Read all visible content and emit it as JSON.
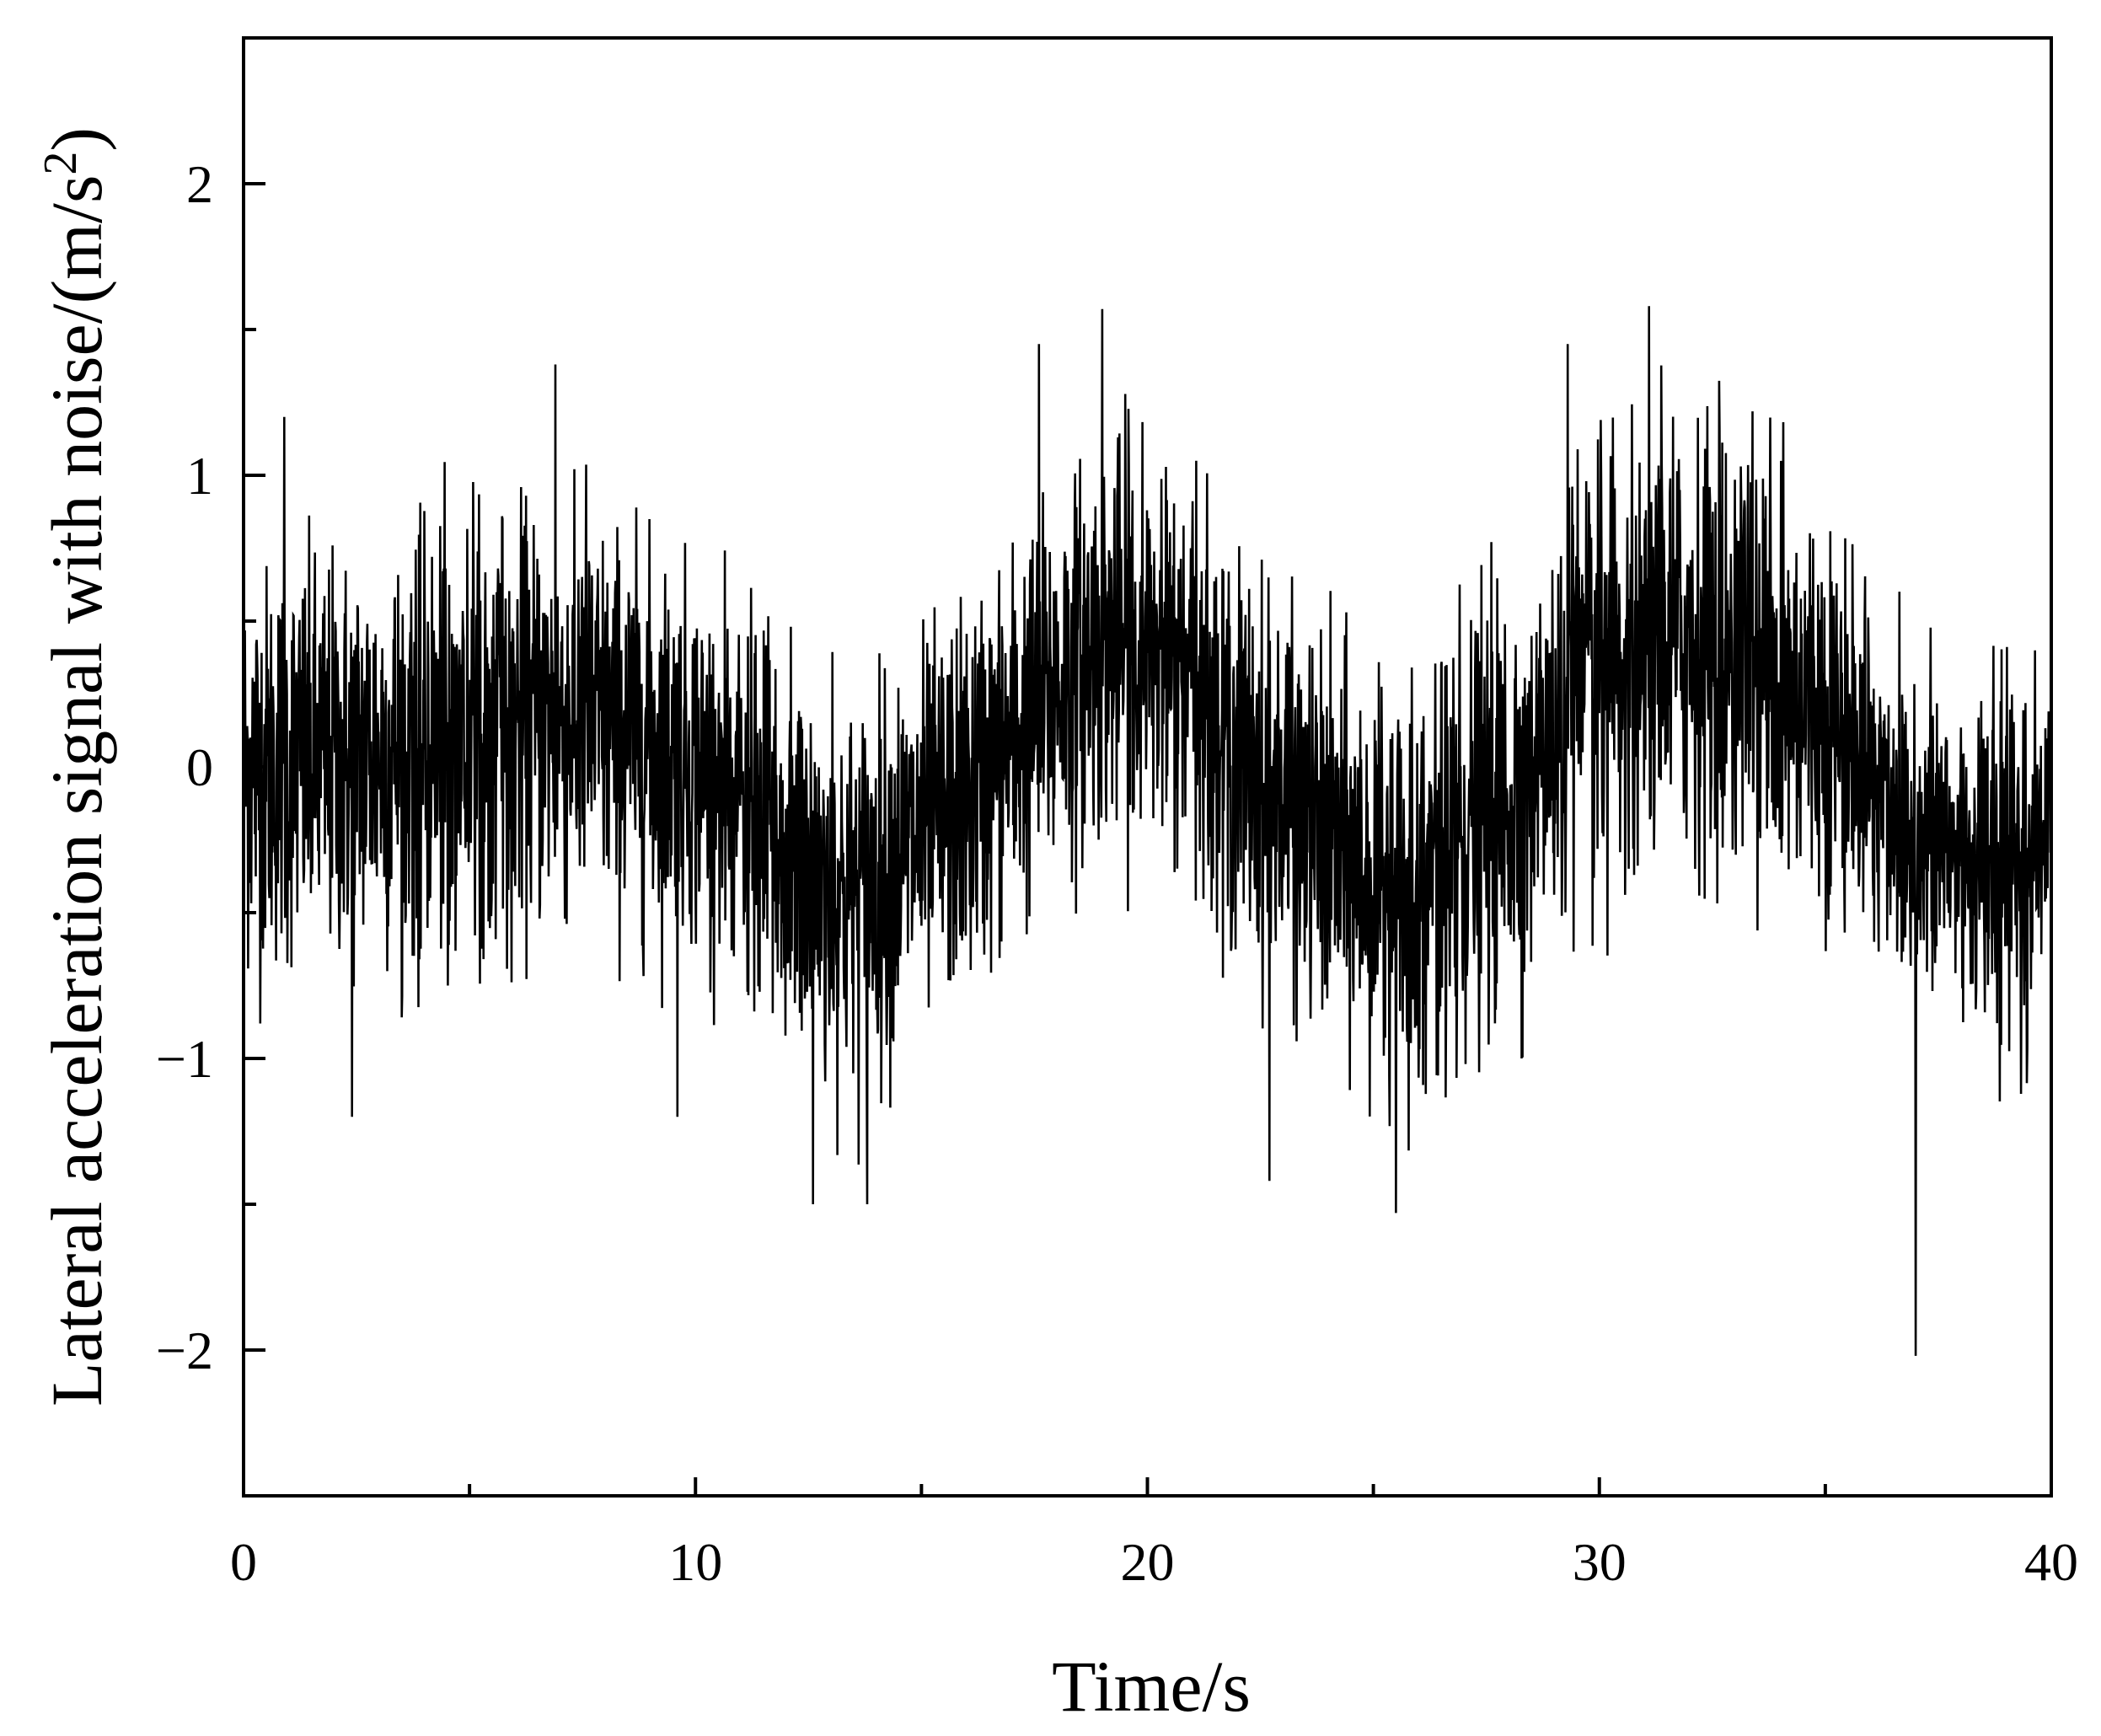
{
  "chart_data": {
    "type": "line",
    "title": "",
    "xlabel": "Time/s",
    "ylabel_prefix": "Lateral acceleration signal with noise/(m/s",
    "ylabel_sup": "2",
    "ylabel_suffix": ")",
    "xlim": [
      0,
      40
    ],
    "ylim": [
      -2.5,
      2.5
    ],
    "x_ticks": [
      0,
      10,
      20,
      30,
      40
    ],
    "x_tick_labels": [
      "0",
      "10",
      "20",
      "30",
      "40"
    ],
    "x_minor_ticks": [
      5,
      15,
      25,
      35
    ],
    "y_ticks": [
      -2,
      -1,
      0,
      1,
      2
    ],
    "y_tick_labels": [
      "−2",
      "−1",
      "0",
      "1",
      "2"
    ],
    "y_minor_ticks": [
      -1.5,
      -0.5,
      0.5,
      1.5
    ],
    "grid": false,
    "legend": "none",
    "line_color": "#000000",
    "series": [
      {
        "sample_step_s": 0.01,
        "baseline_envelope": {
          "t": [
            0,
            2,
            4,
            6,
            7.5,
            10,
            12.5,
            13.5,
            16,
            19,
            20.5,
            23,
            25.5,
            28,
            31,
            33,
            35,
            37,
            39,
            40
          ],
          "center": [
            0.0,
            0.02,
            0.08,
            0.15,
            0.18,
            0.02,
            -0.38,
            -0.45,
            -0.1,
            0.45,
            0.35,
            -0.15,
            -0.45,
            -0.1,
            0.45,
            0.42,
            0.2,
            -0.25,
            -0.35,
            -0.2
          ],
          "upper": [
            0.8,
            0.82,
            0.9,
            0.95,
            1.0,
            0.7,
            0.3,
            0.22,
            0.6,
            1.25,
            1.15,
            0.6,
            0.3,
            0.7,
            1.3,
            1.25,
            0.9,
            0.4,
            0.3,
            0.5
          ],
          "lower": [
            -0.8,
            -0.8,
            -0.78,
            -0.7,
            -0.6,
            -0.75,
            -1.2,
            -1.3,
            -0.9,
            -0.3,
            -0.45,
            -0.9,
            -1.3,
            -1.0,
            -0.45,
            -0.45,
            -0.65,
            -1.0,
            -1.15,
            -0.8
          ]
        },
        "peaks": {
          "max_points": [
            [
              0.9,
              1.2
            ],
            [
              6.9,
              1.38
            ],
            [
              19.0,
              1.57
            ],
            [
              31.1,
              1.58
            ],
            [
              17.6,
              1.45
            ],
            [
              29.3,
              1.45
            ]
          ],
          "min_points": [
            [
              2.4,
              -1.2
            ],
            [
              9.6,
              -1.2
            ],
            [
              12.6,
              -1.5
            ],
            [
              13.8,
              -1.5
            ],
            [
              25.5,
              -1.53
            ],
            [
              37.0,
              -2.02
            ],
            [
              22.7,
              -1.42
            ]
          ]
        }
      }
    ]
  }
}
